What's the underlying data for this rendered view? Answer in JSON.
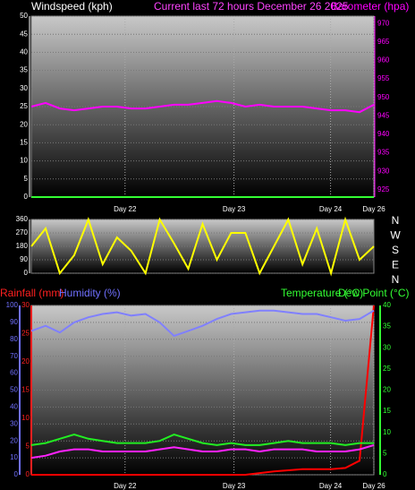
{
  "chart_data": [
    {
      "type": "line",
      "title": "Current last 72 hours December 26 2025",
      "title_color": "#ff44ff",
      "x": [
        0,
        3,
        6,
        9,
        12,
        15,
        18,
        21,
        24,
        27,
        30,
        33,
        36,
        39,
        42,
        45,
        48,
        51,
        54,
        57,
        60,
        63,
        66,
        69,
        72
      ],
      "xlim": [
        0,
        72
      ],
      "xticks": [
        {
          "value": 19.7,
          "label": "Day 22"
        },
        {
          "value": 42.6,
          "label": "Day 23"
        },
        {
          "value": 62.9,
          "label": "Day 24"
        },
        {
          "value": 72,
          "label": "Day 26"
        }
      ],
      "ylim": [
        0,
        50
      ],
      "yticks": [
        0,
        5,
        10,
        15,
        20,
        25,
        30,
        35,
        40,
        45,
        50
      ],
      "y2lim": [
        923,
        972
      ],
      "y2ticks": [
        925,
        930,
        935,
        940,
        945,
        950,
        955,
        960,
        965,
        970
      ],
      "axis_colors": {
        "y": "#ffffff",
        "y2": "#ff00ff"
      },
      "grid": true,
      "series": [
        {
          "name": "Windspeed (kph)",
          "color": "#33ff33",
          "axis": "y",
          "values": [
            0,
            0,
            0,
            0,
            0,
            0,
            0,
            0,
            0,
            0,
            0,
            0,
            0,
            0,
            0,
            0,
            0,
            0,
            0,
            0,
            0,
            0,
            0,
            0,
            0
          ]
        },
        {
          "name": "Barometer (hpa)",
          "color": "#ff00ff",
          "axis": "y2",
          "values": [
            947.5,
            948.5,
            947,
            946.5,
            947,
            947.5,
            947.5,
            947,
            947,
            947.5,
            948,
            948,
            948.5,
            949,
            948.5,
            947.5,
            948,
            947.5,
            947.5,
            947.5,
            947,
            946.5,
            946.5,
            946,
            948
          ]
        }
      ]
    },
    {
      "type": "line",
      "x": [
        0,
        3,
        6,
        9,
        12,
        15,
        18,
        21,
        24,
        27,
        30,
        33,
        36,
        39,
        42,
        45,
        48,
        51,
        54,
        57,
        60,
        63,
        66,
        69,
        72
      ],
      "xlim": [
        0,
        72
      ],
      "ylim": [
        0,
        360
      ],
      "yticks": [
        0,
        90,
        180,
        270,
        360
      ],
      "axis_colors": {
        "y": "#ffffff"
      },
      "direction_labels": [
        "N",
        "W",
        "S",
        "E",
        "N"
      ],
      "grid": true,
      "series": [
        {
          "color": "#ffff00",
          "axis": "y",
          "values": [
            180,
            300,
            0,
            120,
            360,
            60,
            240,
            150,
            0,
            360,
            200,
            30,
            330,
            90,
            270,
            270,
            0,
            180,
            360,
            60,
            300,
            0,
            360,
            90,
            180
          ]
        }
      ]
    },
    {
      "type": "line",
      "x": [
        0,
        3,
        6,
        9,
        12,
        15,
        18,
        21,
        24,
        27,
        30,
        33,
        36,
        39,
        42,
        45,
        48,
        51,
        54,
        57,
        60,
        63,
        66,
        69,
        72
      ],
      "xlim": [
        0,
        72
      ],
      "xticks": [
        {
          "value": 19.7,
          "label": "Day 22"
        },
        {
          "value": 42.6,
          "label": "Day 23"
        },
        {
          "value": 62.9,
          "label": "Day 24"
        },
        {
          "value": 72,
          "label": "Day 26"
        }
      ],
      "ylim": [
        0,
        100
      ],
      "yticks": [
        0,
        10,
        20,
        30,
        40,
        50,
        60,
        70,
        80,
        90,
        100
      ],
      "y2lim": [
        0,
        40
      ],
      "y2ticks": [
        0,
        5,
        10,
        15,
        20,
        25,
        30,
        35,
        40
      ],
      "y3lim": [
        0,
        30
      ],
      "y3ticks": [
        0,
        5,
        10,
        15,
        20,
        25,
        30
      ],
      "axis_colors": {
        "y": "#7070ff",
        "y2": "#33ff33",
        "y3": "#ff2020"
      },
      "grid": true,
      "series": [
        {
          "name": "Rainfall (mm)",
          "color": "#ff0000",
          "axis": "y3",
          "values": [
            0,
            0,
            0,
            0,
            0,
            0,
            0,
            0,
            0,
            0,
            0,
            0,
            0,
            0,
            0,
            0,
            0.3,
            0.6,
            0.8,
            1,
            1,
            1,
            1.2,
            2.5,
            30
          ]
        },
        {
          "name": "Humidity (%)",
          "color": "#8080ff",
          "axis": "y",
          "values": [
            85,
            88,
            84,
            90,
            93,
            95,
            96,
            94,
            95,
            90,
            82,
            85,
            88,
            92,
            95,
            96,
            97,
            97,
            96,
            95,
            95,
            93,
            91,
            92,
            97
          ]
        },
        {
          "name": "Temperature (°C)",
          "color": "#22ee22",
          "axis": "y2",
          "values": [
            7,
            7.5,
            8.5,
            9.5,
            8.5,
            8,
            7.5,
            7.5,
            7.5,
            8,
            9.5,
            8.5,
            7.5,
            7,
            7.5,
            7,
            7,
            7.5,
            8,
            7.5,
            7.5,
            7.5,
            7,
            7.5,
            7.5
          ]
        },
        {
          "name": "Dew Point (°C)",
          "color": "#ff22ff",
          "axis": "y2",
          "values": [
            4,
            4.5,
            5.5,
            6,
            6,
            5.5,
            5.5,
            5.5,
            5.5,
            6,
            6.5,
            6,
            5.5,
            5.5,
            6,
            6,
            5.5,
            6,
            6,
            6,
            5.5,
            5.5,
            5.5,
            6,
            7
          ]
        }
      ]
    }
  ]
}
